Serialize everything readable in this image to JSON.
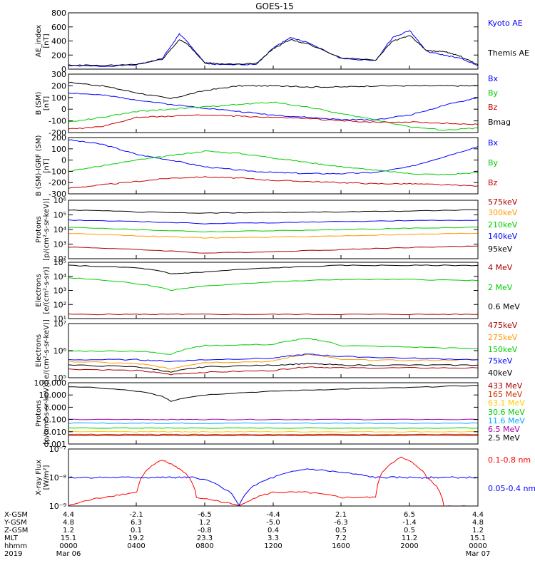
{
  "title": "GOES-15",
  "panels": [
    {
      "id": "ae",
      "ylabel": [
        "AE_index",
        "[nT]"
      ],
      "ticks": [
        "0",
        "200",
        "400",
        "600",
        "800"
      ],
      "legend": [
        {
          "label": "Kyoto AE",
          "color": "#0000ff"
        },
        {
          "label": "Themis AE",
          "color": "#000000"
        }
      ]
    },
    {
      "id": "b_sm",
      "ylabel": [
        "B (SM)",
        "[nT]"
      ],
      "ticks": [
        "-200",
        "-100",
        "0",
        "100",
        "200",
        "300"
      ],
      "legend": [
        {
          "label": "Bx",
          "color": "#0000ff"
        },
        {
          "label": "By",
          "color": "#00cc00"
        },
        {
          "label": "Bz",
          "color": "#cc0000"
        },
        {
          "label": "Bmag",
          "color": "#000000"
        }
      ]
    },
    {
      "id": "b_igrf",
      "ylabel": [
        "B (SM)-IGRF (SM)",
        "[nT]"
      ],
      "ticks": [
        "-300",
        "-200",
        "-100",
        "0",
        "100",
        "200"
      ],
      "legend": [
        {
          "label": "Bx",
          "color": "#0000ff"
        },
        {
          "label": "By",
          "color": "#00cc00"
        },
        {
          "label": "Bz",
          "color": "#cc0000"
        }
      ]
    },
    {
      "id": "protons_low",
      "ylabel": [
        "Protons",
        "[p/(cm²-s-sr-keV)]"
      ],
      "ticks": [
        "10²",
        "10³",
        "10⁴",
        "10⁵",
        "10⁶"
      ],
      "legend": [
        {
          "label": "575keV",
          "color": "#aa0000"
        },
        {
          "label": "300keV",
          "color": "#ff9900"
        },
        {
          "label": "210keV",
          "color": "#00cc00"
        },
        {
          "label": "140keV",
          "color": "#0000ff"
        },
        {
          "label": "95keV",
          "color": "#000000"
        }
      ]
    },
    {
      "id": "electrons_mev",
      "ylabel": [
        "Electrons",
        "[e/(cm²-s-sr)]"
      ],
      "ticks": [
        "10¹",
        "10²",
        "10³",
        "10⁴",
        "10⁵"
      ],
      "legend": [
        {
          "label": "4 MeV",
          "color": "#aa0000"
        },
        {
          "label": "2 MeV",
          "color": "#00cc00"
        },
        {
          "label": "0.6 MeV",
          "color": "#000000"
        }
      ]
    },
    {
      "id": "electrons_kev",
      "ylabel": [
        "Electrons",
        "[e/(cm²-s-sr-keV)]"
      ],
      "ticks": [
        "10⁵",
        "10⁶",
        "10⁷"
      ],
      "legend": [
        {
          "label": "475keV",
          "color": "#aa0000"
        },
        {
          "label": "275keV",
          "color": "#ff9900"
        },
        {
          "label": "150keV",
          "color": "#00cc00"
        },
        {
          "label": "75keV",
          "color": "#0000ff"
        },
        {
          "label": "40keV",
          "color": "#000000"
        }
      ]
    },
    {
      "id": "protons_high",
      "ylabel": [
        "Protons",
        "[p/(cm²-s-sr-keV)]"
      ],
      "ticks": [
        "0.001",
        "0.010",
        "0.100",
        "1.000",
        "10.000",
        "100.000"
      ],
      "legend": [
        {
          "label": "433 MeV",
          "color": "#aa0000"
        },
        {
          "label": "165 MeV",
          "color": "#cc3300"
        },
        {
          "label": "63.1 MeV",
          "color": "#ffcc00"
        },
        {
          "label": "30.6 MeV",
          "color": "#00cc00"
        },
        {
          "label": "11.6 MeV",
          "color": "#00aaff"
        },
        {
          "label": "6.5 MeV",
          "color": "#aa00aa"
        },
        {
          "label": "2.5 MeV",
          "color": "#000000"
        }
      ]
    },
    {
      "id": "xray",
      "ylabel": [
        "X-ray Flux",
        "[W/m²]"
      ],
      "ticks": [
        "10⁻⁹",
        "10⁻⁸",
        "10⁻⁷"
      ],
      "legend": [
        {
          "label": "0.1-0.8 nm",
          "color": "#ff0000"
        },
        {
          "label": "0.05-0.4 nm",
          "color": "#0000ff"
        }
      ]
    }
  ],
  "footer": {
    "rows": [
      {
        "label": "X-GSM",
        "values": [
          "4.4",
          "-2.1",
          "-6.5",
          "-4.4",
          "2.1",
          "6.5",
          "4.4"
        ]
      },
      {
        "label": "Y-GSM",
        "values": [
          "4.8",
          "6.3",
          "1.2",
          "-5.0",
          "-6.3",
          "-1.4",
          "4.8"
        ]
      },
      {
        "label": "Z-GSM",
        "values": [
          "1.2",
          "0.1",
          "-0.8",
          "0.4",
          "0.5",
          "0.5",
          "1.2"
        ]
      },
      {
        "label": "MLT",
        "values": [
          "15.1",
          "19.2",
          "23.3",
          "3.3",
          "7.2",
          "11.2",
          "15.1"
        ]
      },
      {
        "label": "hhmm",
        "values": [
          "0000",
          "0400",
          "0800",
          "1200",
          "1600",
          "2000",
          "0000"
        ]
      },
      {
        "label": "2019",
        "values": [
          "Mar 06",
          "",
          "",
          "",
          "",
          "",
          "Mar 07"
        ]
      }
    ]
  },
  "chart_data": [
    {
      "type": "line",
      "title": "GOES-15",
      "ylabel": "AE_index [nT]",
      "ylim": [
        0,
        800
      ],
      "x_hours": [
        0,
        2,
        4,
        5.5,
        6.5,
        7,
        8,
        9,
        11,
        12,
        13,
        14,
        16,
        18,
        19,
        20,
        21,
        22,
        23,
        24
      ],
      "series": [
        {
          "name": "Kyoto AE",
          "values": [
            50,
            40,
            60,
            150,
            500,
            380,
            80,
            60,
            70,
            300,
            450,
            380,
            150,
            120,
            450,
            550,
            250,
            200,
            150,
            50
          ]
        },
        {
          "name": "Themis AE",
          "values": [
            60,
            50,
            70,
            140,
            420,
            350,
            90,
            70,
            80,
            290,
            420,
            360,
            160,
            130,
            400,
            480,
            260,
            250,
            180,
            60
          ]
        }
      ]
    },
    {
      "type": "line",
      "ylabel": "B (SM) [nT]",
      "ylim": [
        -200,
        300
      ],
      "x_hours": [
        0,
        2,
        4,
        6,
        8,
        10,
        12,
        14,
        16,
        18,
        20,
        22,
        24
      ],
      "series": [
        {
          "name": "Bx",
          "values": [
            140,
            120,
            80,
            40,
            10,
            -20,
            -50,
            -70,
            -90,
            -90,
            -50,
            30,
            100
          ]
        },
        {
          "name": "By",
          "values": [
            -110,
            -70,
            -20,
            0,
            20,
            40,
            60,
            20,
            -40,
            -90,
            -150,
            -180,
            -160
          ]
        },
        {
          "name": "Bz",
          "values": [
            -170,
            -150,
            -70,
            -60,
            -50,
            -60,
            -70,
            -80,
            -100,
            -110,
            -110,
            -120,
            -130
          ]
        },
        {
          "name": "Bmag",
          "values": [
            230,
            200,
            140,
            90,
            160,
            200,
            200,
            190,
            190,
            200,
            200,
            200,
            200
          ]
        }
      ]
    },
    {
      "type": "line",
      "ylabel": "B (SM)-IGRF (SM) [nT]",
      "ylim": [
        -300,
        200
      ],
      "x_hours": [
        0,
        2,
        4,
        6,
        8,
        10,
        12,
        14,
        16,
        18,
        20,
        22,
        24
      ],
      "series": [
        {
          "name": "Bx",
          "values": [
            180,
            140,
            50,
            0,
            -60,
            -90,
            -110,
            -120,
            -120,
            -110,
            -60,
            30,
            120
          ]
        },
        {
          "name": "By",
          "values": [
            -100,
            -50,
            0,
            40,
            80,
            60,
            20,
            -20,
            -60,
            -90,
            -120,
            -130,
            -110
          ]
        },
        {
          "name": "Bz",
          "values": [
            -250,
            -220,
            -190,
            -160,
            -150,
            -160,
            -180,
            -190,
            -200,
            -210,
            -210,
            -220,
            -230
          ]
        }
      ]
    },
    {
      "type": "line",
      "ylabel": "Protons [p/(cm²-s-sr-keV)]",
      "yscale": "log",
      "ylim": [
        10,
        1000000
      ],
      "x_hours": [
        0,
        4,
        8,
        12,
        16,
        20,
        24
      ],
      "series": [
        {
          "name": "575keV",
          "values": [
            100,
            60,
            30,
            40,
            60,
            90,
            120
          ]
        },
        {
          "name": "300keV",
          "values": [
            1500,
            900,
            600,
            700,
            900,
            1200,
            1500
          ]
        },
        {
          "name": "210keV",
          "values": [
            5000,
            3000,
            2000,
            2500,
            3000,
            4000,
            5000
          ]
        },
        {
          "name": "140keV",
          "values": [
            20000,
            15000,
            10000,
            12000,
            15000,
            18000,
            20000
          ]
        },
        {
          "name": "95keV",
          "values": [
            150000,
            100000,
            80000,
            90000,
            100000,
            120000,
            150000
          ]
        }
      ]
    },
    {
      "type": "line",
      "ylabel": "Electrons [e/(cm²-s-sr)]",
      "yscale": "log",
      "ylim": [
        10,
        100000
      ],
      "x_hours": [
        0,
        4,
        6,
        8,
        12,
        16,
        20,
        24
      ],
      "series": [
        {
          "name": "4 MeV",
          "values": [
            20,
            20,
            20,
            20,
            20,
            20,
            20,
            20
          ]
        },
        {
          "name": "2 MeV",
          "values": [
            8000,
            3000,
            1000,
            2000,
            4000,
            6000,
            6000,
            5000
          ]
        },
        {
          "name": "0.6 MeV",
          "values": [
            60000,
            40000,
            15000,
            20000,
            40000,
            60000,
            60000,
            60000
          ]
        }
      ]
    },
    {
      "type": "line",
      "ylabel": "Electrons [e/(cm²-s-sr-keV)]",
      "yscale": "log",
      "ylim": [
        10000,
        10000000
      ],
      "x_hours": [
        0,
        4,
        6,
        8,
        12,
        14,
        16,
        20,
        24
      ],
      "series": [
        {
          "name": "475keV",
          "values": [
            30000,
            25000,
            15000,
            20000,
            25000,
            40000,
            35000,
            35000,
            35000
          ]
        },
        {
          "name": "275keV",
          "values": [
            80000,
            60000,
            30000,
            70000,
            80000,
            200000,
            100000,
            90000,
            100000
          ]
        },
        {
          "name": "150keV",
          "values": [
            300000,
            300000,
            200000,
            600000,
            700000,
            1500000,
            600000,
            500000,
            400000
          ]
        },
        {
          "name": "75keV",
          "values": [
            100000,
            100000,
            80000,
            100000,
            120000,
            200000,
            150000,
            120000,
            100000
          ]
        },
        {
          "name": "40keV",
          "values": [
            50000,
            40000,
            20000,
            40000,
            50000,
            60000,
            50000,
            50000,
            50000
          ]
        }
      ]
    },
    {
      "type": "line",
      "ylabel": "Protons [p/(cm²-s-sr-keV)]",
      "yscale": "log",
      "ylim": [
        0.001,
        100
      ],
      "x_hours": [
        0,
        4,
        6,
        8,
        12,
        16,
        20,
        24
      ],
      "series": [
        {
          "name": "433 MeV",
          "values": [
            0.005,
            0.005,
            0.005,
            0.005,
            0.005,
            0.005,
            0.005,
            0.005
          ]
        },
        {
          "name": "165 MeV",
          "values": [
            0.006,
            0.006,
            0.006,
            0.006,
            0.006,
            0.006,
            0.006,
            0.006
          ]
        },
        {
          "name": "63.1 MeV",
          "values": [
            0.01,
            0.01,
            0.01,
            0.01,
            0.01,
            0.01,
            0.01,
            0.01
          ]
        },
        {
          "name": "30.6 MeV",
          "values": [
            0.02,
            0.02,
            0.02,
            0.02,
            0.02,
            0.02,
            0.02,
            0.02
          ]
        },
        {
          "name": "11.6 MeV",
          "values": [
            0.05,
            0.05,
            0.05,
            0.05,
            0.05,
            0.05,
            0.05,
            0.05
          ]
        },
        {
          "name": "6.5 MeV",
          "values": [
            0.1,
            0.1,
            0.1,
            0.1,
            0.1,
            0.1,
            0.1,
            0.1
          ]
        },
        {
          "name": "2.5 MeV",
          "values": [
            50,
            20,
            3,
            10,
            20,
            30,
            40,
            60
          ]
        }
      ]
    },
    {
      "type": "line",
      "ylabel": "X-ray Flux [W/m²]",
      "yscale": "log",
      "ylim": [
        1e-09,
        1e-07
      ],
      "x_hours": [
        0,
        2,
        4,
        5.5,
        6.5,
        7.5,
        10,
        12,
        14,
        16,
        18,
        19.5,
        21,
        22,
        24
      ],
      "series": [
        {
          "name": "0.1-0.8 nm",
          "values": [
            1e-09,
            2e-09,
            3e-09,
            4e-08,
            2e-08,
            2e-09,
            1e-09,
            3e-09,
            3e-09,
            2e-09,
            2e-09,
            5e-08,
            1e-08,
            1e-09,
            1e-09
          ]
        },
        {
          "name": "0.05-0.4 nm",
          "values": [
            1e-08,
            1e-08,
            1e-08,
            1e-08,
            1e-08,
            1e-08,
            1e-09,
            1e-08,
            2e-08,
            1.5e-08,
            1e-08,
            1e-08,
            1e-08,
            1e-08,
            1e-08
          ]
        }
      ]
    }
  ]
}
